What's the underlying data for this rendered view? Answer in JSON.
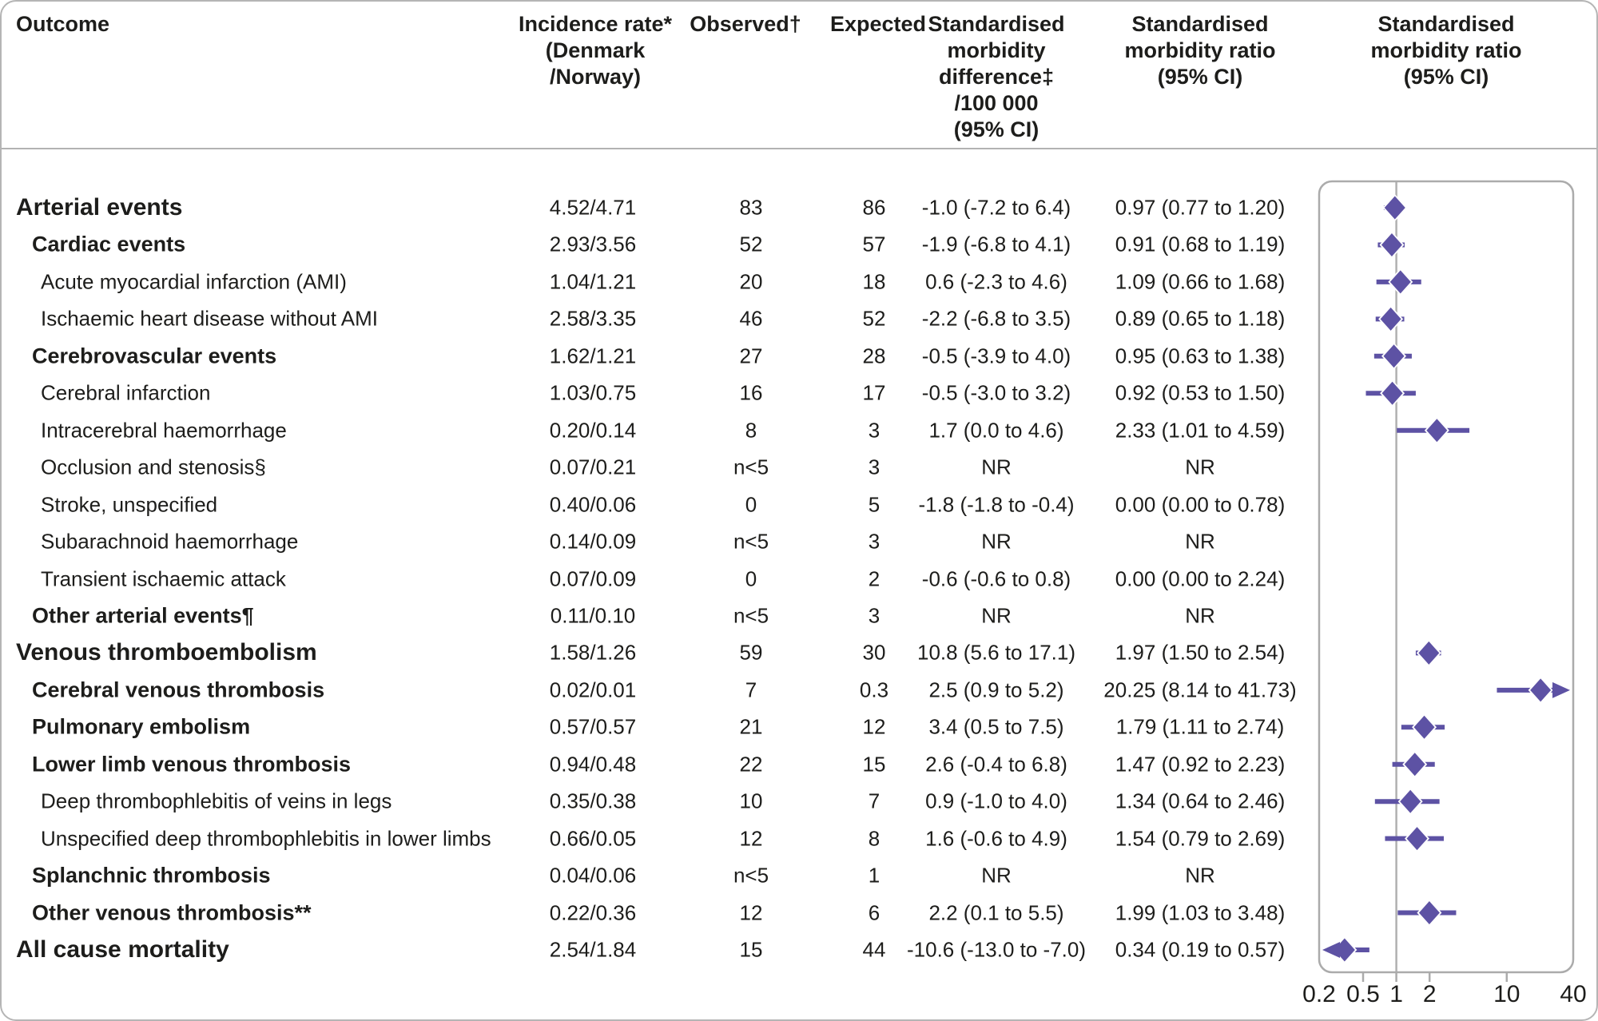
{
  "header": {
    "outcome": "Outcome",
    "incidence": "Incidence rate*\n(Denmark\n/Norway)",
    "observed": "Observed†",
    "expected": "Expected",
    "smd": "Standardised\nmorbidity\ndifference‡\n/100 000\n(95% CI)",
    "smr": "Standardised\nmorbidity ratio\n(95% CI)",
    "plot": "Standardised\nmorbidity ratio\n(95% CI)"
  },
  "rows": [
    {
      "label": "Arterial events",
      "level": 0,
      "incidence": "4.52/4.71",
      "observed": "83",
      "expected": "86",
      "smd": "-1.0 (-7.2 to 6.4)",
      "smr": "0.97 (0.77 to 1.20)"
    },
    {
      "label": "Cardiac events",
      "level": 1,
      "incidence": "2.93/3.56",
      "observed": "52",
      "expected": "57",
      "smd": "-1.9 (-6.8 to 4.1)",
      "smr": "0.91 (0.68 to 1.19)"
    },
    {
      "label": "Acute myocardial infarction (AMI)",
      "level": 2,
      "incidence": "1.04/1.21",
      "observed": "20",
      "expected": "18",
      "smd": "0.6 (-2.3 to 4.6)",
      "smr": "1.09 (0.66 to 1.68)"
    },
    {
      "label": "Ischaemic heart disease without AMI",
      "level": 2,
      "incidence": "2.58/3.35",
      "observed": "46",
      "expected": "52",
      "smd": "-2.2 (-6.8 to 3.5)",
      "smr": "0.89 (0.65 to 1.18)"
    },
    {
      "label": "Cerebrovascular events",
      "level": 1,
      "incidence": "1.62/1.21",
      "observed": "27",
      "expected": "28",
      "smd": "-0.5 (-3.9 to 4.0)",
      "smr": "0.95 (0.63 to 1.38)"
    },
    {
      "label": "Cerebral infarction",
      "level": 2,
      "incidence": "1.03/0.75",
      "observed": "16",
      "expected": "17",
      "smd": "-0.5 (-3.0 to 3.2)",
      "smr": "0.92 (0.53 to 1.50)"
    },
    {
      "label": "Intracerebral haemorrhage",
      "level": 2,
      "incidence": "0.20/0.14",
      "observed": "8",
      "expected": "3",
      "smd": "1.7 (0.0 to 4.6)",
      "smr": "2.33 (1.01 to 4.59)"
    },
    {
      "label": "Occlusion and stenosis§",
      "level": 2,
      "incidence": "0.07/0.21",
      "observed": "n<5",
      "expected": "3",
      "smd": "NR",
      "smr": "NR"
    },
    {
      "label": "Stroke, unspecified",
      "level": 2,
      "incidence": "0.40/0.06",
      "observed": "0",
      "expected": "5",
      "smd": "-1.8 (-1.8 to -0.4)",
      "smr": "0.00 (0.00 to 0.78)"
    },
    {
      "label": "Subarachnoid haemorrhage",
      "level": 2,
      "incidence": "0.14/0.09",
      "observed": "n<5",
      "expected": "3",
      "smd": "NR",
      "smr": "NR"
    },
    {
      "label": "Transient ischaemic attack",
      "level": 2,
      "incidence": "0.07/0.09",
      "observed": "0",
      "expected": "2",
      "smd": "-0.6 (-0.6 to 0.8)",
      "smr": "0.00 (0.00 to 2.24)"
    },
    {
      "label": "Other arterial events¶",
      "level": 1,
      "incidence": "0.11/0.10",
      "observed": "n<5",
      "expected": "3",
      "smd": "NR",
      "smr": "NR"
    },
    {
      "label": "Venous thromboembolism",
      "level": 0,
      "incidence": "1.58/1.26",
      "observed": "59",
      "expected": "30",
      "smd": "10.8 (5.6 to 17.1)",
      "smr": "1.97 (1.50 to 2.54)"
    },
    {
      "label": "Cerebral venous thrombosis",
      "level": 1,
      "incidence": "0.02/0.01",
      "observed": "7",
      "expected": "0.3",
      "smd": "2.5 (0.9 to 5.2)",
      "smr": "20.25 (8.14 to 41.73)"
    },
    {
      "label": "Pulmonary embolism",
      "level": 1,
      "incidence": "0.57/0.57",
      "observed": "21",
      "expected": "12",
      "smd": "3.4 (0.5 to 7.5)",
      "smr": "1.79 (1.11 to 2.74)"
    },
    {
      "label": "Lower limb venous thrombosis",
      "level": 1,
      "incidence": "0.94/0.48",
      "observed": "22",
      "expected": "15",
      "smd": "2.6 (-0.4 to 6.8)",
      "smr": "1.47 (0.92 to 2.23)"
    },
    {
      "label": "Deep thrombophlebitis of veins in legs",
      "level": 2,
      "incidence": "0.35/0.38",
      "observed": "10",
      "expected": "7",
      "smd": "0.9 (-1.0 to 4.0)",
      "smr": "1.34 (0.64 to 2.46)"
    },
    {
      "label": "Unspecified deep thrombophlebitis in lower limbs",
      "level": 2,
      "incidence": "0.66/0.05",
      "observed": "12",
      "expected": "8",
      "smd": "1.6 (-0.6 to 4.9)",
      "smr": "1.54 (0.79 to 2.69)"
    },
    {
      "label": "Splanchnic thrombosis",
      "level": 1,
      "incidence": "0.04/0.06",
      "observed": "n<5",
      "expected": "1",
      "smd": "NR",
      "smr": "NR"
    },
    {
      "label": "Other venous thrombosis**",
      "level": 1,
      "incidence": "0.22/0.36",
      "observed": "12",
      "expected": "6",
      "smd": "2.2 (0.1 to 5.5)",
      "smr": "1.99 (1.03 to 3.48)"
    },
    {
      "label": "All cause mortality",
      "level": 0,
      "incidence": "2.54/1.84",
      "observed": "15",
      "expected": "44",
      "smd": "-10.6 (-13.0 to -7.0)",
      "smr": "0.34 (0.19 to 0.57)"
    }
  ],
  "chart_data": {
    "type": "scatter",
    "variant": "forest-plot",
    "title": "Standardised morbidity ratio (95% CI)",
    "xscale": "log",
    "xlim": [
      0.2,
      40
    ],
    "xticks": [
      "0.2",
      "0.5",
      "1",
      "2",
      "10",
      "40"
    ],
    "xtick_values": [
      0.2,
      0.5,
      1,
      2,
      10,
      40
    ],
    "reference_line": 1,
    "marker_color": "#5d52a4",
    "frame_color": "#ababab",
    "points": [
      {
        "outcome": "Arterial events",
        "smr": 0.97,
        "lo": 0.77,
        "hi": 1.2
      },
      {
        "outcome": "Cardiac events",
        "smr": 0.91,
        "lo": 0.68,
        "hi": 1.19
      },
      {
        "outcome": "Acute myocardial infarction (AMI)",
        "smr": 1.09,
        "lo": 0.66,
        "hi": 1.68
      },
      {
        "outcome": "Ischaemic heart disease without AMI",
        "smr": 0.89,
        "lo": 0.65,
        "hi": 1.18
      },
      {
        "outcome": "Cerebrovascular events",
        "smr": 0.95,
        "lo": 0.63,
        "hi": 1.38
      },
      {
        "outcome": "Cerebral infarction",
        "smr": 0.92,
        "lo": 0.53,
        "hi": 1.5
      },
      {
        "outcome": "Intracerebral haemorrhage",
        "smr": 2.33,
        "lo": 1.01,
        "hi": 4.59
      },
      {
        "outcome": "Occlusion and stenosis§",
        "smr": null,
        "lo": null,
        "hi": null
      },
      {
        "outcome": "Stroke, unspecified",
        "smr": 0.0,
        "lo": 0.0,
        "hi": 0.78
      },
      {
        "outcome": "Subarachnoid haemorrhage",
        "smr": null,
        "lo": null,
        "hi": null
      },
      {
        "outcome": "Transient ischaemic attack",
        "smr": 0.0,
        "lo": 0.0,
        "hi": 2.24
      },
      {
        "outcome": "Other arterial events¶",
        "smr": null,
        "lo": null,
        "hi": null
      },
      {
        "outcome": "Venous thromboembolism",
        "smr": 1.97,
        "lo": 1.5,
        "hi": 2.54
      },
      {
        "outcome": "Cerebral venous thrombosis",
        "smr": 20.25,
        "lo": 8.14,
        "hi": 41.73
      },
      {
        "outcome": "Pulmonary embolism",
        "smr": 1.79,
        "lo": 1.11,
        "hi": 2.74
      },
      {
        "outcome": "Lower limb venous thrombosis",
        "smr": 1.47,
        "lo": 0.92,
        "hi": 2.23
      },
      {
        "outcome": "Deep thrombophlebitis of veins in legs",
        "smr": 1.34,
        "lo": 0.64,
        "hi": 2.46
      },
      {
        "outcome": "Unspecified deep thrombophlebitis in lower limbs",
        "smr": 1.54,
        "lo": 0.79,
        "hi": 2.69
      },
      {
        "outcome": "Splanchnic thrombosis",
        "smr": null,
        "lo": null,
        "hi": null
      },
      {
        "outcome": "Other venous thrombosis**",
        "smr": 1.99,
        "lo": 1.03,
        "hi": 3.48
      },
      {
        "outcome": "All cause mortality",
        "smr": 0.34,
        "lo": 0.19,
        "hi": 0.57
      }
    ]
  }
}
